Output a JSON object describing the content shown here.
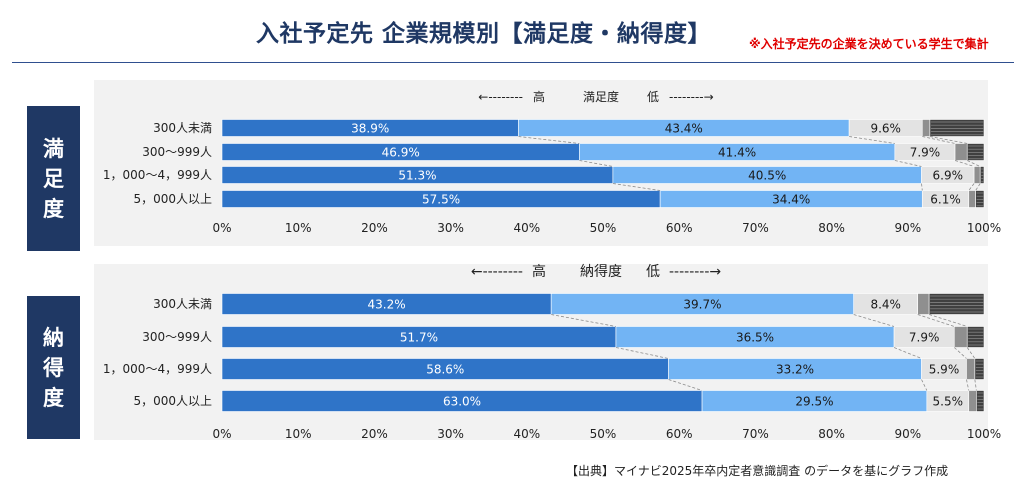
{
  "header": {
    "title": "入社予定先 企業規模別【満足度・納得度】",
    "note": "※入社予定先の企業を決めている学生で集計"
  },
  "source": "【出典】マイナビ2025年卒内定者意識調査 のデータを基にグラフ作成",
  "colors": {
    "navy": "#1f3864",
    "seg1": "#2f74c8",
    "seg2": "#72b4f4",
    "seg3": "#e3e3e3",
    "seg4": "#8f8f8f",
    "seg5": "#404040",
    "title_note": "#e00000"
  },
  "chart_data": [
    {
      "type": "bar",
      "orientation": "horizontal",
      "stacked": "100%",
      "side_label": "満足度",
      "scale": {
        "left": "←--------",
        "high": "高",
        "name": "満足度",
        "low": "低",
        "right": "--------→"
      },
      "categories": [
        "300人未満",
        "300～999人",
        "1，000～4，999人",
        "5，000人以上"
      ],
      "x_ticks": [
        "0%",
        "10%",
        "20%",
        "30%",
        "40%",
        "50%",
        "60%",
        "70%",
        "80%",
        "90%",
        "100%"
      ],
      "xlim": [
        0,
        100
      ],
      "grid": false,
      "series": [
        {
          "values": [
            38.9,
            46.9,
            51.3,
            57.5
          ],
          "labels": [
            "38.9%",
            "46.9%",
            "51.3%",
            "57.5%"
          ]
        },
        {
          "values": [
            43.4,
            41.4,
            40.5,
            34.4
          ],
          "labels": [
            "43.4%",
            "41.4%",
            "40.5%",
            "34.4%"
          ]
        },
        {
          "values": [
            9.6,
            7.9,
            6.9,
            6.1
          ],
          "labels": [
            "9.6%",
            "7.9%",
            "6.9%",
            "6.1%"
          ]
        },
        {
          "values": [
            1.0,
            1.6,
            0.8,
            0.9
          ]
        },
        {
          "values": [
            7.1,
            2.2,
            0.5,
            1.1
          ]
        }
      ]
    },
    {
      "type": "bar",
      "orientation": "horizontal",
      "stacked": "100%",
      "side_label": "納得度",
      "scale": {
        "left": "←--------",
        "high": "高",
        "name": "納得度",
        "low": "低",
        "right": "--------→"
      },
      "categories": [
        "300人未満",
        "300～999人",
        "1，000～4，999人",
        "5，000人以上"
      ],
      "x_ticks": [
        "0%",
        "10%",
        "20%",
        "30%",
        "40%",
        "50%",
        "60%",
        "70%",
        "80%",
        "90%",
        "100%"
      ],
      "xlim": [
        0,
        100
      ],
      "grid": false,
      "series": [
        {
          "values": [
            43.2,
            51.7,
            58.6,
            63.0
          ],
          "labels": [
            "43.2%",
            "51.7%",
            "58.6%",
            "63.0%"
          ]
        },
        {
          "values": [
            39.7,
            36.5,
            33.2,
            29.5
          ],
          "labels": [
            "39.7%",
            "36.5%",
            "33.2%",
            "29.5%"
          ]
        },
        {
          "values": [
            8.4,
            7.9,
            5.9,
            5.5
          ],
          "labels": [
            "8.4%",
            "7.9%",
            "5.9%",
            "5.5%"
          ]
        },
        {
          "values": [
            1.5,
            1.7,
            1.1,
            1.0
          ]
        },
        {
          "values": [
            7.2,
            2.2,
            1.2,
            1.0
          ]
        }
      ]
    }
  ]
}
